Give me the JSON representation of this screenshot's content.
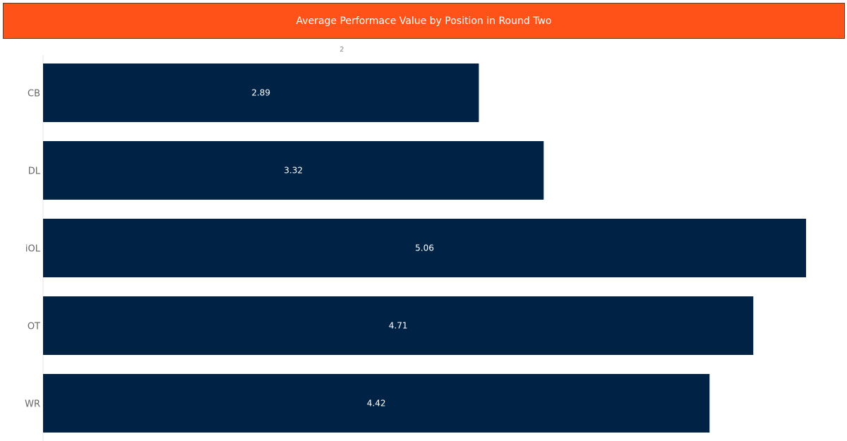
{
  "chart_data": {
    "type": "bar",
    "orientation": "horizontal",
    "title": "Average Performace Value by Position in Round Two",
    "categories": [
      "CB",
      "DL",
      "iOL",
      "OT",
      "WR"
    ],
    "values": [
      2.89,
      3.32,
      5.06,
      4.71,
      4.42
    ],
    "value_labels": [
      "2.89",
      "3.32",
      "5.06",
      "4.71",
      "4.42"
    ],
    "xlim": [
      0,
      5.3
    ],
    "x_ticks": [
      2
    ],
    "x_tick_labels": [
      "2"
    ],
    "xlabel": "",
    "ylabel": "",
    "grid": false,
    "legend": "none",
    "colors": {
      "bar": "#002244",
      "title_background": "#ff5218",
      "title_text": "#ffffff"
    }
  }
}
